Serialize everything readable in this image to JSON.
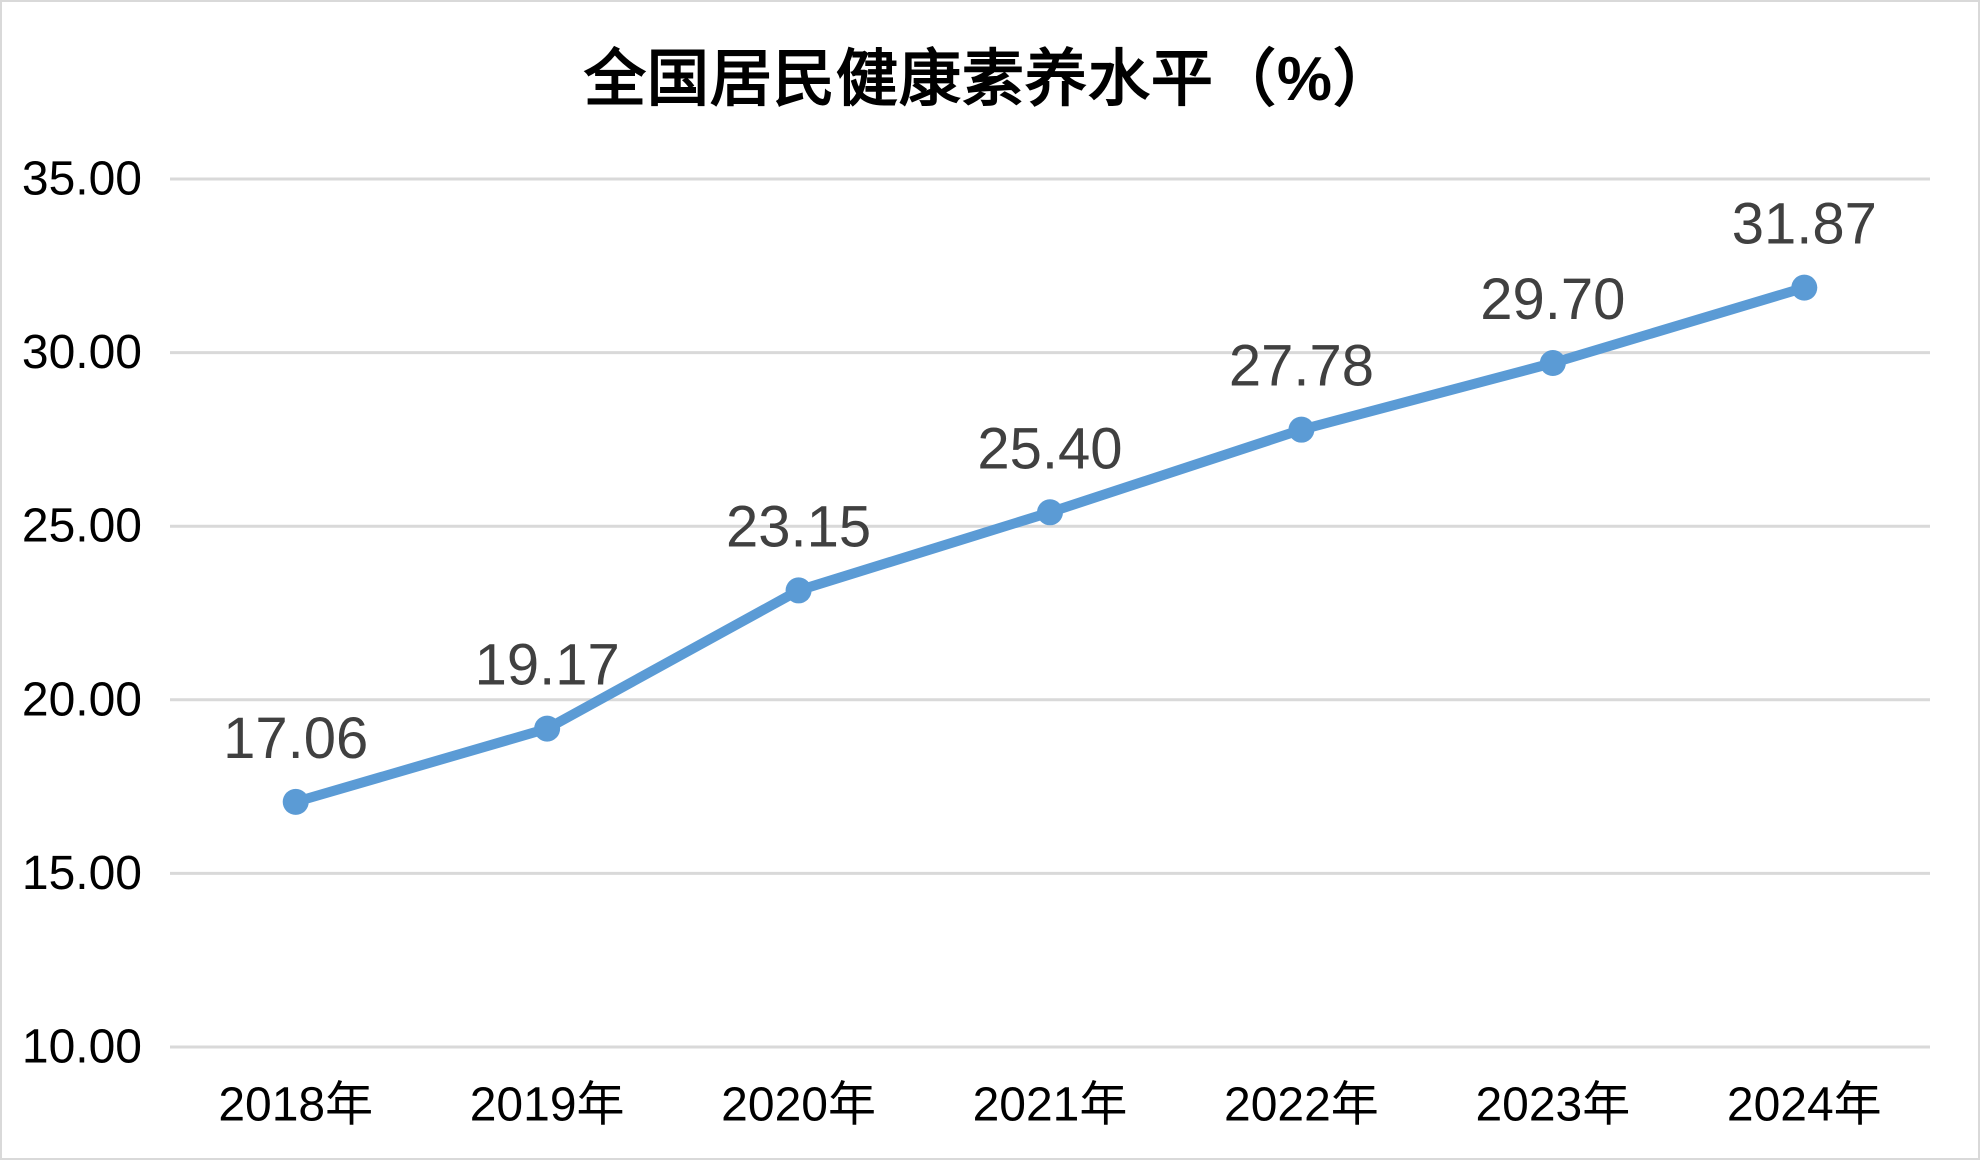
{
  "frame": {
    "background": "#ffffff",
    "border_color": "#d9d9d9"
  },
  "chart_data": {
    "type": "line",
    "title": "全国居民健康素养水平（%）",
    "categories": [
      "2018年",
      "2019年",
      "2020年",
      "2021年",
      "2022年",
      "2023年",
      "2024年"
    ],
    "values": [
      17.06,
      19.17,
      23.15,
      25.4,
      27.78,
      29.7,
      31.87
    ],
    "data_labels": [
      "17.06",
      "19.17",
      "23.15",
      "25.40",
      "27.78",
      "29.70",
      "31.87"
    ],
    "xlabel": "",
    "ylabel": "",
    "y_axis": {
      "min": 10,
      "max": 35,
      "step": 5,
      "tick_labels": [
        "10.00",
        "15.00",
        "20.00",
        "25.00",
        "30.00",
        "35.00"
      ]
    },
    "grid": true,
    "legend": "none",
    "colors": {
      "line": "#5b9bd5",
      "marker": "#5b9bd5",
      "data_label": "#404040",
      "axis_label": "#000000",
      "gridline": "#d9d9d9",
      "title": "#000000"
    }
  }
}
